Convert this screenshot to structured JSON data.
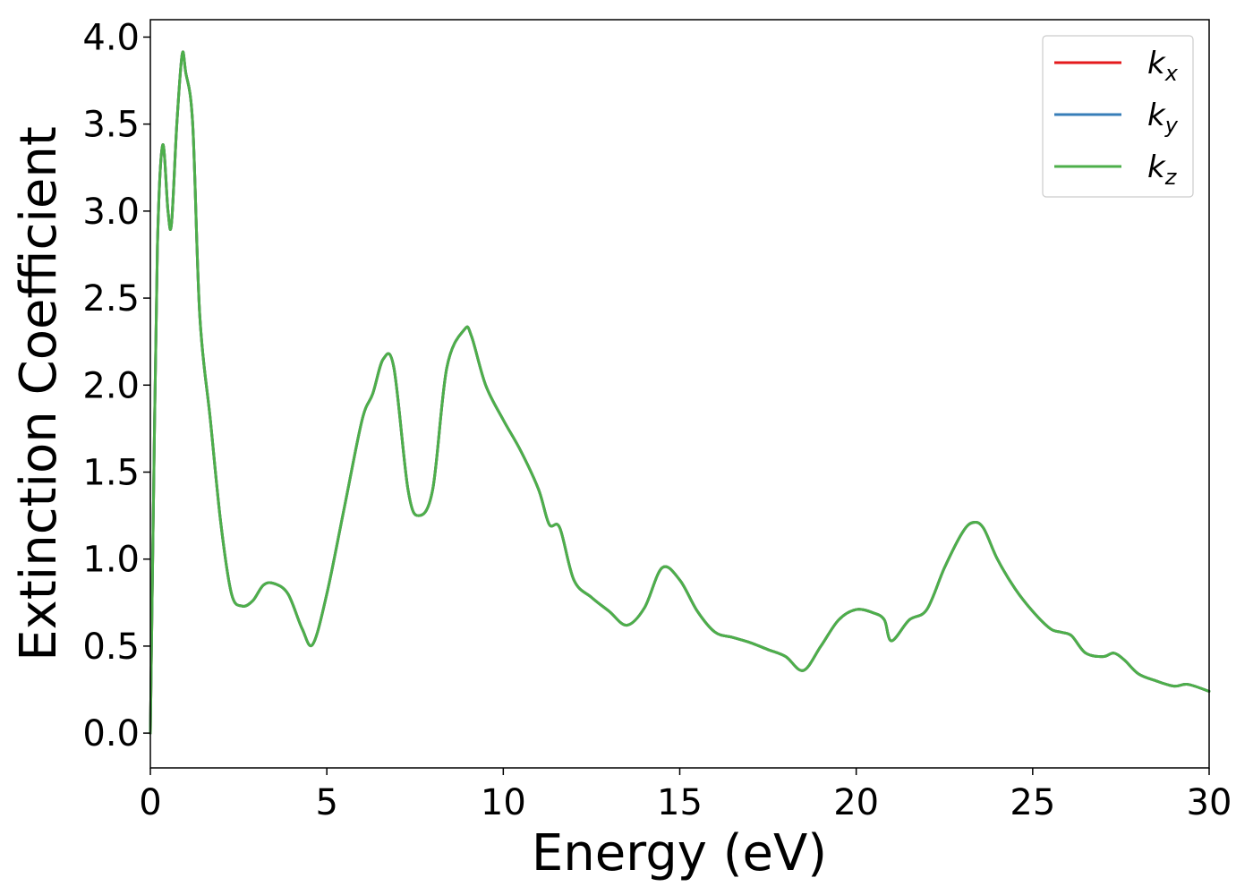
{
  "chart_data": {
    "type": "line",
    "title": "",
    "xlabel": "Energy (eV)",
    "ylabel": "Extinction Coefficient",
    "xlim": [
      0,
      30
    ],
    "ylim": [
      -0.2,
      4.1
    ],
    "xticks": [
      0,
      5,
      10,
      15,
      20,
      25,
      30
    ],
    "xtick_labels": [
      "0",
      "5",
      "10",
      "15",
      "20",
      "25",
      "30"
    ],
    "yticks": [
      0.0,
      0.5,
      1.0,
      1.5,
      2.0,
      2.5,
      3.0,
      3.5,
      4.0
    ],
    "ytick_labels": [
      "0.0",
      "0.5",
      "1.0",
      "1.5",
      "2.0",
      "2.5",
      "3.0",
      "3.5",
      "4.0"
    ],
    "grid": false,
    "legend_position": "top-right",
    "series": [
      {
        "name": "k_x",
        "label_base": "k",
        "label_sub": "x",
        "color": "#e41a1c",
        "x": [
          0,
          0.1,
          0.2,
          0.35,
          0.5,
          0.6,
          0.75,
          0.9,
          1.0,
          1.2,
          1.4,
          1.7,
          2.0,
          2.3,
          2.6,
          2.9,
          3.2,
          3.5,
          3.9,
          4.3,
          4.6,
          5.0,
          5.5,
          6.0,
          6.3,
          6.6,
          6.9,
          7.3,
          7.6,
          8.0,
          8.4,
          8.9,
          9.1,
          9.5,
          10.0,
          10.5,
          11.0,
          11.3,
          11.6,
          12.0,
          12.5,
          13.0,
          13.5,
          14.0,
          14.5,
          15.0,
          15.5,
          16.0,
          16.5,
          17.0,
          17.5,
          18.0,
          18.5,
          19.0,
          19.5,
          20.0,
          20.5,
          20.8,
          21.0,
          21.5,
          22.0,
          22.5,
          23.0,
          23.3,
          23.6,
          24.0,
          24.5,
          25.0,
          25.5,
          25.8,
          26.1,
          26.5,
          27.0,
          27.3,
          27.6,
          28.0,
          28.5,
          29.0,
          29.4,
          30.0
        ],
        "values": [
          0.0,
          1.5,
          2.8,
          3.38,
          3.0,
          2.93,
          3.5,
          3.9,
          3.8,
          3.5,
          2.4,
          1.8,
          1.2,
          0.8,
          0.73,
          0.76,
          0.85,
          0.86,
          0.8,
          0.6,
          0.51,
          0.8,
          1.3,
          1.8,
          1.95,
          2.15,
          2.1,
          1.4,
          1.25,
          1.4,
          2.1,
          2.32,
          2.28,
          2.0,
          1.8,
          1.62,
          1.4,
          1.2,
          1.18,
          0.88,
          0.78,
          0.7,
          0.62,
          0.72,
          0.95,
          0.88,
          0.7,
          0.58,
          0.55,
          0.52,
          0.48,
          0.44,
          0.36,
          0.5,
          0.65,
          0.71,
          0.69,
          0.65,
          0.53,
          0.65,
          0.71,
          0.95,
          1.15,
          1.21,
          1.18,
          1.0,
          0.83,
          0.7,
          0.6,
          0.58,
          0.56,
          0.46,
          0.44,
          0.46,
          0.42,
          0.34,
          0.3,
          0.27,
          0.28,
          0.24
        ]
      },
      {
        "name": "k_y",
        "label_base": "k",
        "label_sub": "y",
        "color": "#377eb8",
        "x": [
          0,
          0.1,
          0.2,
          0.35,
          0.5,
          0.6,
          0.75,
          0.9,
          1.0,
          1.2,
          1.4,
          1.7,
          2.0,
          2.3,
          2.6,
          2.9,
          3.2,
          3.5,
          3.9,
          4.3,
          4.6,
          5.0,
          5.5,
          6.0,
          6.3,
          6.6,
          6.9,
          7.3,
          7.6,
          8.0,
          8.4,
          8.9,
          9.1,
          9.5,
          10.0,
          10.5,
          11.0,
          11.3,
          11.6,
          12.0,
          12.5,
          13.0,
          13.5,
          14.0,
          14.5,
          15.0,
          15.5,
          16.0,
          16.5,
          17.0,
          17.5,
          18.0,
          18.5,
          19.0,
          19.5,
          20.0,
          20.5,
          20.8,
          21.0,
          21.5,
          22.0,
          22.5,
          23.0,
          23.3,
          23.6,
          24.0,
          24.5,
          25.0,
          25.5,
          25.8,
          26.1,
          26.5,
          27.0,
          27.3,
          27.6,
          28.0,
          28.5,
          29.0,
          29.4,
          30.0
        ],
        "values": [
          0.0,
          1.5,
          2.8,
          3.38,
          3.0,
          2.93,
          3.5,
          3.9,
          3.8,
          3.5,
          2.4,
          1.8,
          1.2,
          0.8,
          0.73,
          0.76,
          0.85,
          0.86,
          0.8,
          0.6,
          0.51,
          0.8,
          1.3,
          1.8,
          1.95,
          2.15,
          2.1,
          1.4,
          1.25,
          1.4,
          2.1,
          2.32,
          2.28,
          2.0,
          1.8,
          1.62,
          1.4,
          1.2,
          1.18,
          0.88,
          0.78,
          0.7,
          0.62,
          0.72,
          0.95,
          0.88,
          0.7,
          0.58,
          0.55,
          0.52,
          0.48,
          0.44,
          0.36,
          0.5,
          0.65,
          0.71,
          0.69,
          0.65,
          0.53,
          0.65,
          0.71,
          0.95,
          1.15,
          1.21,
          1.18,
          1.0,
          0.83,
          0.7,
          0.6,
          0.58,
          0.56,
          0.46,
          0.44,
          0.46,
          0.42,
          0.34,
          0.3,
          0.27,
          0.28,
          0.24
        ]
      },
      {
        "name": "k_z",
        "label_base": "k",
        "label_sub": "z",
        "color": "#4daf4a",
        "x": [
          0,
          0.1,
          0.2,
          0.35,
          0.5,
          0.6,
          0.75,
          0.9,
          1.0,
          1.2,
          1.4,
          1.7,
          2.0,
          2.3,
          2.6,
          2.9,
          3.2,
          3.5,
          3.9,
          4.3,
          4.6,
          5.0,
          5.5,
          6.0,
          6.3,
          6.6,
          6.9,
          7.3,
          7.6,
          8.0,
          8.4,
          8.9,
          9.1,
          9.5,
          10.0,
          10.5,
          11.0,
          11.3,
          11.6,
          12.0,
          12.5,
          13.0,
          13.5,
          14.0,
          14.5,
          15.0,
          15.5,
          16.0,
          16.5,
          17.0,
          17.5,
          18.0,
          18.5,
          19.0,
          19.5,
          20.0,
          20.5,
          20.8,
          21.0,
          21.5,
          22.0,
          22.5,
          23.0,
          23.3,
          23.6,
          24.0,
          24.5,
          25.0,
          25.5,
          25.8,
          26.1,
          26.5,
          27.0,
          27.3,
          27.6,
          28.0,
          28.5,
          29.0,
          29.4,
          30.0
        ],
        "values": [
          0.0,
          1.5,
          2.8,
          3.38,
          3.0,
          2.93,
          3.5,
          3.9,
          3.8,
          3.5,
          2.4,
          1.8,
          1.2,
          0.8,
          0.73,
          0.76,
          0.85,
          0.86,
          0.8,
          0.6,
          0.51,
          0.8,
          1.3,
          1.8,
          1.95,
          2.15,
          2.1,
          1.4,
          1.25,
          1.4,
          2.1,
          2.32,
          2.28,
          2.0,
          1.8,
          1.62,
          1.4,
          1.2,
          1.18,
          0.88,
          0.78,
          0.7,
          0.62,
          0.72,
          0.95,
          0.88,
          0.7,
          0.58,
          0.55,
          0.52,
          0.48,
          0.44,
          0.36,
          0.5,
          0.65,
          0.71,
          0.69,
          0.65,
          0.53,
          0.65,
          0.71,
          0.95,
          1.15,
          1.21,
          1.18,
          1.0,
          0.83,
          0.7,
          0.6,
          0.58,
          0.56,
          0.46,
          0.44,
          0.46,
          0.42,
          0.34,
          0.3,
          0.27,
          0.28,
          0.24
        ]
      }
    ]
  }
}
